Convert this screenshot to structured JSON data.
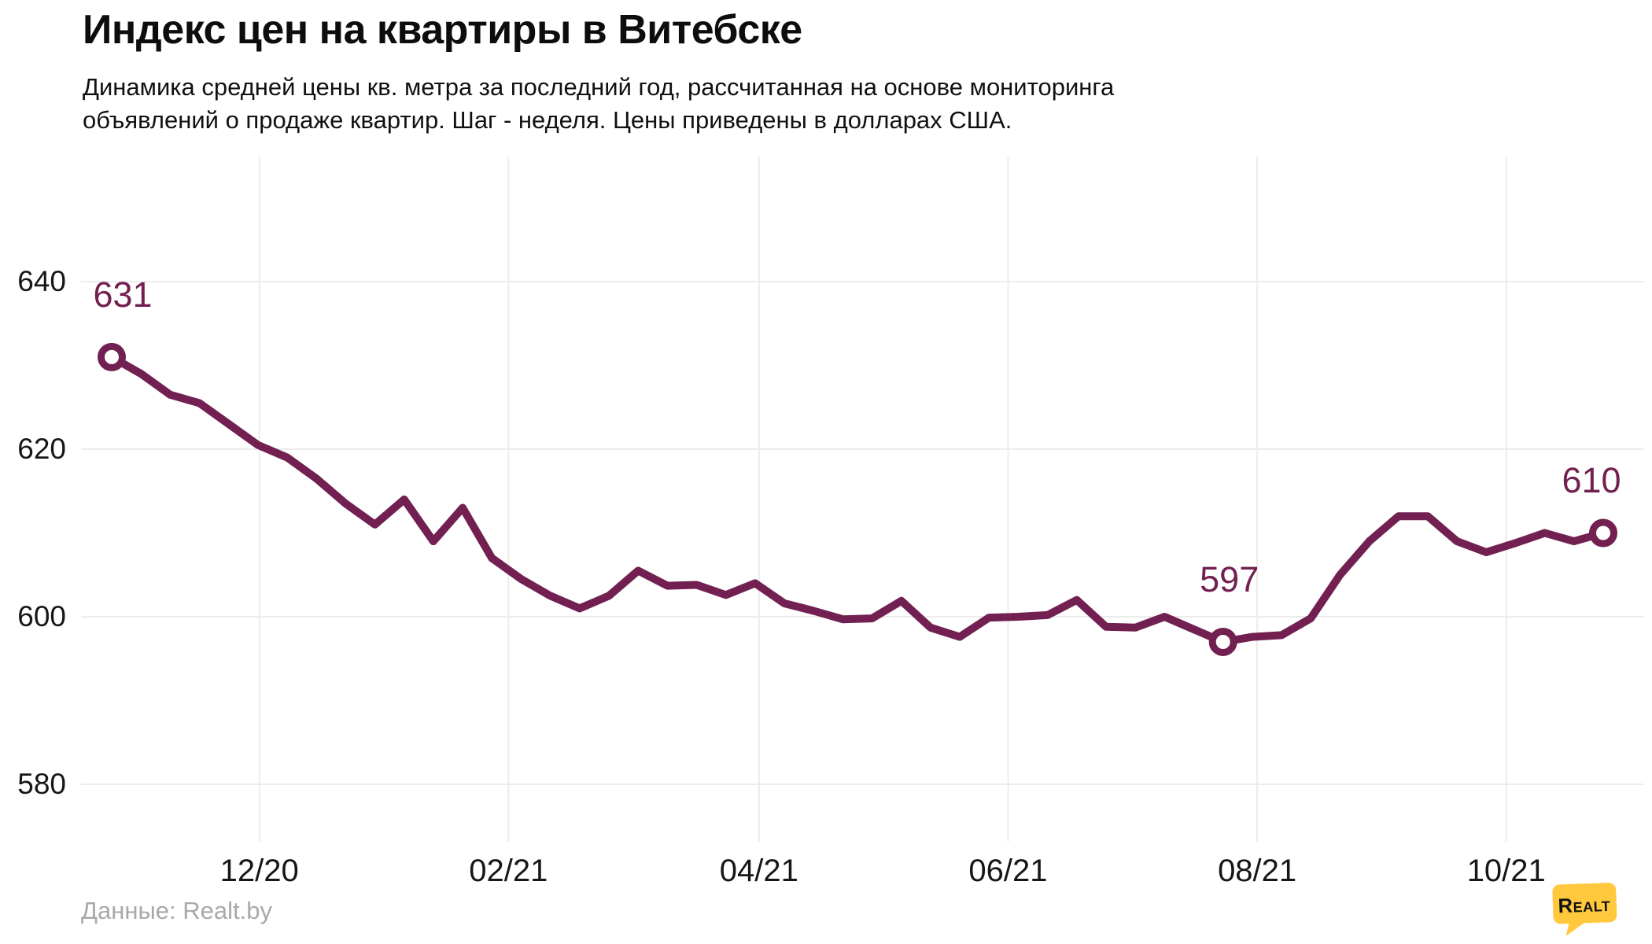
{
  "header": {
    "title": "Индекс цен на квартиры в Витебске",
    "subtitle_line1": "Динамика средней цены кв. метра за последний год, рассчитанная на основе мониторинга",
    "subtitle_line2": "объявлений о продаже квартир. Шаг - неделя. Цены приведены в долларах США."
  },
  "footer": {
    "source_label": "Данные: Realt.by",
    "logo_text": "Realt"
  },
  "colors": {
    "line": "#722051",
    "point_label": "#722051",
    "marker_fill": "#ffffff",
    "grid": "#ececec",
    "axis_text": "#161616",
    "footer_text": "#a9a9a9",
    "logo_yellow": "#ffc83d",
    "background": "#ffffff"
  },
  "chart_data": {
    "type": "line",
    "title": "Индекс цен на квартиры в Витебске",
    "xlabel": "",
    "ylabel": "",
    "step": "week",
    "currency": "USD",
    "ylim": [
      573,
      655
    ],
    "grid": true,
    "y_ticks": [
      640,
      620,
      600,
      580
    ],
    "x_ticks": [
      {
        "label": "12/20",
        "pos": 0.099
      },
      {
        "label": "02/21",
        "pos": 0.266
      },
      {
        "label": "04/21",
        "pos": 0.434
      },
      {
        "label": "06/21",
        "pos": 0.601
      },
      {
        "label": "08/21",
        "pos": 0.768
      },
      {
        "label": "10/21",
        "pos": 0.935
      }
    ],
    "values": [
      631,
      629,
      626.5,
      625.5,
      623,
      620.5,
      619,
      616.5,
      613.5,
      611,
      614,
      609,
      613,
      607,
      604.5,
      602.5,
      601,
      602.5,
      605.5,
      603.7,
      603.8,
      602.6,
      604,
      601.6,
      600.7,
      599.7,
      599.8,
      601.9,
      598.7,
      597.6,
      599.9,
      600,
      600.2,
      602,
      598.8,
      598.7,
      600,
      598.5,
      597,
      597.6,
      597.8,
      599.8,
      605,
      609,
      612,
      612,
      609,
      607.7,
      608.8,
      610,
      609,
      610
    ],
    "annotations": [
      {
        "index": 0,
        "label": "631"
      },
      {
        "index": 38,
        "label": "597"
      },
      {
        "index": 51,
        "label": "610"
      }
    ]
  }
}
